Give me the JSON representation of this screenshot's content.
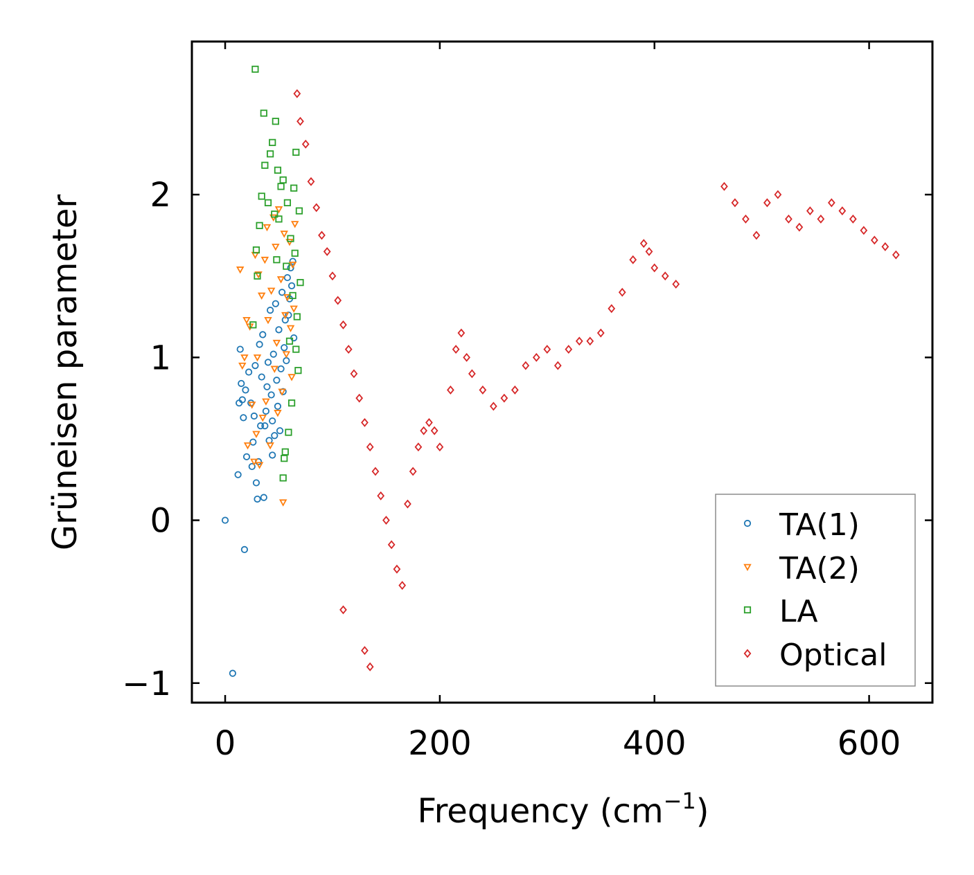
{
  "chart_data": {
    "type": "scatter",
    "title": "",
    "xlabel": "Frequency (cm",
    "xlabel_sup": "−1",
    "xlabel_end": ")",
    "ylabel": "Grüneisen parameter",
    "xlim": [
      -31,
      659
    ],
    "ylim": [
      -1.12,
      2.94
    ],
    "xticks": [
      0,
      200,
      400,
      600
    ],
    "xtick_labels": [
      "0",
      "200",
      "400",
      "600"
    ],
    "yticks": [
      -1,
      0,
      1,
      2
    ],
    "ytick_labels": [
      "−1",
      "0",
      "1",
      "2"
    ],
    "grid": false,
    "legend_position": "lower-right",
    "series": [
      {
        "name": "TA(1)",
        "marker": "circle",
        "color": "#1f77b4",
        "points": [
          [
            0,
            0
          ],
          [
            7,
            -0.94
          ],
          [
            18,
            -0.18
          ],
          [
            14,
            1.05
          ],
          [
            15,
            0.84
          ],
          [
            16,
            0.74
          ],
          [
            17,
            0.63
          ],
          [
            19,
            0.8
          ],
          [
            20,
            0.39
          ],
          [
            22,
            0.91
          ],
          [
            24,
            0.72
          ],
          [
            25,
            0.33
          ],
          [
            26,
            0.48
          ],
          [
            28,
            0.95
          ],
          [
            29,
            0.23
          ],
          [
            30,
            0.13
          ],
          [
            31,
            0.36
          ],
          [
            32,
            1.08
          ],
          [
            34,
            0.88
          ],
          [
            35,
            1.14
          ],
          [
            36,
            0.14
          ],
          [
            37,
            0.58
          ],
          [
            38,
            0.67
          ],
          [
            40,
            0.97
          ],
          [
            41,
            0.49
          ],
          [
            42,
            1.29
          ],
          [
            43,
            0.77
          ],
          [
            44,
            0.61
          ],
          [
            45,
            1.02
          ],
          [
            46,
            0.52
          ],
          [
            47,
            1.33
          ],
          [
            48,
            0.86
          ],
          [
            49,
            0.7
          ],
          [
            50,
            1.17
          ],
          [
            51,
            0.55
          ],
          [
            52,
            0.93
          ],
          [
            53,
            1.4
          ],
          [
            54,
            0.79
          ],
          [
            55,
            1.06
          ],
          [
            56,
            1.23
          ],
          [
            57,
            0.98
          ],
          [
            58,
            1.49
          ],
          [
            59,
            1.26
          ],
          [
            60,
            1.36
          ],
          [
            61,
            1.55
          ],
          [
            62,
            1.44
          ],
          [
            63,
            1.59
          ],
          [
            64,
            1.12
          ],
          [
            12,
            0.28
          ],
          [
            44,
            0.4
          ],
          [
            13,
            0.72
          ],
          [
            39,
            0.82
          ],
          [
            27,
            0.64
          ],
          [
            33,
            0.58
          ]
        ]
      },
      {
        "name": "TA(2)",
        "marker": "triangle-down",
        "color": "#ff7f0e",
        "points": [
          [
            14,
            1.54
          ],
          [
            16,
            0.95
          ],
          [
            18,
            1.0
          ],
          [
            20,
            1.23
          ],
          [
            21,
            0.46
          ],
          [
            23,
            1.19
          ],
          [
            25,
            0.71
          ],
          [
            27,
            0.36
          ],
          [
            28,
            1.63
          ],
          [
            29,
            0.53
          ],
          [
            30,
            1.0
          ],
          [
            31,
            1.51
          ],
          [
            32,
            0.34
          ],
          [
            34,
            1.38
          ],
          [
            35,
            0.63
          ],
          [
            37,
            1.6
          ],
          [
            38,
            0.73
          ],
          [
            39,
            1.8
          ],
          [
            40,
            1.23
          ],
          [
            42,
            0.46
          ],
          [
            43,
            1.41
          ],
          [
            45,
            1.86
          ],
          [
            46,
            0.93
          ],
          [
            47,
            1.68
          ],
          [
            48,
            1.09
          ],
          [
            49,
            0.66
          ],
          [
            50,
            1.91
          ],
          [
            52,
            1.48
          ],
          [
            53,
            0.79
          ],
          [
            54,
            0.11
          ],
          [
            55,
            1.76
          ],
          [
            56,
            1.26
          ],
          [
            57,
            1.02
          ],
          [
            58,
            1.37
          ],
          [
            60,
            1.71
          ],
          [
            61,
            1.18
          ],
          [
            62,
            0.88
          ],
          [
            63,
            1.57
          ],
          [
            64,
            1.3
          ],
          [
            65,
            1.82
          ]
        ]
      },
      {
        "name": "LA",
        "marker": "square",
        "color": "#2ca02c",
        "points": [
          [
            28,
            2.77
          ],
          [
            36,
            2.5
          ],
          [
            42,
            2.25
          ],
          [
            44,
            2.32
          ],
          [
            37,
            2.18
          ],
          [
            34,
            1.99
          ],
          [
            32,
            1.81
          ],
          [
            29,
            1.66
          ],
          [
            26,
            1.2
          ],
          [
            30,
            1.5
          ],
          [
            47,
            2.45
          ],
          [
            49,
            2.15
          ],
          [
            50,
            1.85
          ],
          [
            52,
            2.05
          ],
          [
            54,
            2.09
          ],
          [
            55,
            0.38
          ],
          [
            54,
            0.26
          ],
          [
            57,
            1.56
          ],
          [
            58,
            1.95
          ],
          [
            59,
            0.54
          ],
          [
            60,
            1.1
          ],
          [
            61,
            1.73
          ],
          [
            62,
            0.72
          ],
          [
            63,
            1.38
          ],
          [
            64,
            2.04
          ],
          [
            65,
            1.64
          ],
          [
            66,
            2.26
          ],
          [
            67,
            1.25
          ],
          [
            68,
            0.92
          ],
          [
            69,
            1.9
          ],
          [
            70,
            1.46
          ],
          [
            48,
            1.6
          ],
          [
            40,
            1.95
          ],
          [
            46,
            1.88
          ],
          [
            56,
            0.42
          ],
          [
            66,
            1.05
          ]
        ]
      },
      {
        "name": "Optical",
        "marker": "diamond",
        "color": "#d62728",
        "points": [
          [
            67,
            2.62
          ],
          [
            70,
            2.45
          ],
          [
            75,
            2.31
          ],
          [
            80,
            2.08
          ],
          [
            85,
            1.92
          ],
          [
            90,
            1.75
          ],
          [
            95,
            1.65
          ],
          [
            100,
            1.5
          ],
          [
            105,
            1.35
          ],
          [
            110,
            1.2
          ],
          [
            115,
            1.05
          ],
          [
            120,
            0.9
          ],
          [
            125,
            0.75
          ],
          [
            130,
            0.6
          ],
          [
            135,
            0.45
          ],
          [
            140,
            0.3
          ],
          [
            145,
            0.15
          ],
          [
            150,
            0.0
          ],
          [
            155,
            -0.15
          ],
          [
            160,
            -0.3
          ],
          [
            165,
            -0.4
          ],
          [
            170,
            0.1
          ],
          [
            175,
            0.3
          ],
          [
            180,
            0.45
          ],
          [
            185,
            0.55
          ],
          [
            190,
            0.6
          ],
          [
            195,
            0.55
          ],
          [
            200,
            0.45
          ],
          [
            110,
            -0.55
          ],
          [
            130,
            -0.8
          ],
          [
            135,
            -0.9
          ],
          [
            210,
            0.8
          ],
          [
            215,
            1.05
          ],
          [
            220,
            1.15
          ],
          [
            225,
            1.0
          ],
          [
            230,
            0.9
          ],
          [
            240,
            0.8
          ],
          [
            250,
            0.7
          ],
          [
            260,
            0.75
          ],
          [
            270,
            0.8
          ],
          [
            280,
            0.95
          ],
          [
            290,
            1.0
          ],
          [
            300,
            1.05
          ],
          [
            310,
            0.95
          ],
          [
            320,
            1.05
          ],
          [
            330,
            1.1
          ],
          [
            340,
            1.1
          ],
          [
            350,
            1.15
          ],
          [
            360,
            1.3
          ],
          [
            370,
            1.4
          ],
          [
            380,
            1.6
          ],
          [
            390,
            1.7
          ],
          [
            395,
            1.65
          ],
          [
            400,
            1.55
          ],
          [
            410,
            1.5
          ],
          [
            420,
            1.45
          ],
          [
            465,
            2.05
          ],
          [
            475,
            1.95
          ],
          [
            485,
            1.85
          ],
          [
            495,
            1.75
          ],
          [
            505,
            1.95
          ],
          [
            515,
            2.0
          ],
          [
            525,
            1.85
          ],
          [
            535,
            1.8
          ],
          [
            545,
            1.9
          ],
          [
            555,
            1.85
          ],
          [
            565,
            1.95
          ],
          [
            575,
            1.9
          ],
          [
            585,
            1.85
          ],
          [
            595,
            1.78
          ],
          [
            605,
            1.72
          ],
          [
            615,
            1.68
          ],
          [
            625,
            1.63
          ]
        ]
      }
    ]
  }
}
